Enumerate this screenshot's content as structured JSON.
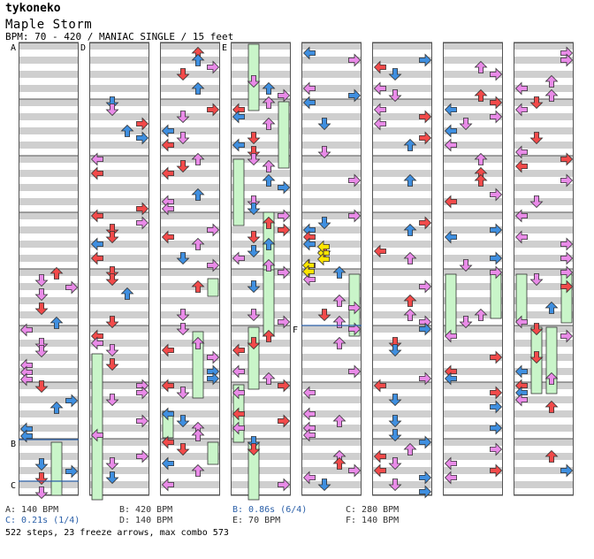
{
  "header": {
    "user": "tykoneko",
    "song": "Maple Storm",
    "info": "BPM: 70 - 420 / MANIAC SINGLE / 15 feet"
  },
  "markers": [
    {
      "label": "A"
    },
    {
      "label": "D"
    },
    {
      "label": "E"
    },
    {
      "label": "B"
    },
    {
      "label": "C"
    },
    {
      "label": "F"
    }
  ],
  "legend": [
    {
      "text": "A: 140 BPM",
      "color": "#333333"
    },
    {
      "text": "B: 420 BPM",
      "color": "#333333"
    },
    {
      "text": "B: 0.86s (6/4)",
      "color": "#2a5fa8"
    },
    {
      "text": "C: 280 BPM",
      "color": "#333333"
    },
    {
      "text": "C: 0.21s (1/4)",
      "color": "#2a5fa8"
    },
    {
      "text": "D: 140 BPM",
      "color": "#333333"
    },
    {
      "text": "E: 70 BPM",
      "color": "#333333"
    },
    {
      "text": "F: 140 BPM",
      "color": "#333333"
    }
  ],
  "stats": "522 steps, 23 freeze arrows, max combo 573",
  "colors": {
    "red": "#f24a4a",
    "blue": "#3f8fe0",
    "pink": "#e98be8",
    "yellow": "#ffe500",
    "freeze": "#c9f5c9",
    "stripe": "#cfcfcf"
  }
}
